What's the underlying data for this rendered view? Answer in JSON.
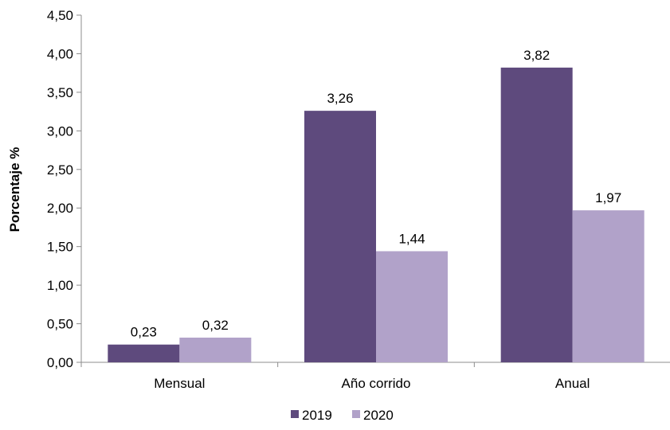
{
  "chart_data": {
    "type": "bar",
    "title": "",
    "xlabel": "",
    "ylabel": "Porcentaje %",
    "categories": [
      "Mensual",
      "Año corrido",
      "Anual"
    ],
    "series": [
      {
        "name": "2019",
        "values": [
          0.23,
          3.26,
          3.82
        ],
        "labels": [
          "0,23",
          "3,26",
          "3,82"
        ],
        "color": "#5e4a7d"
      },
      {
        "name": "2020",
        "values": [
          0.32,
          1.44,
          1.97
        ],
        "labels": [
          "0,32",
          "1,44",
          "1,97"
        ],
        "color": "#b1a2c9"
      }
    ],
    "ylim": [
      0,
      4.5
    ],
    "yticks": [
      0,
      0.5,
      1,
      1.5,
      2,
      2.5,
      3,
      3.5,
      4,
      4.5
    ],
    "ytick_labels": [
      "0,00",
      "0,50",
      "1,00",
      "1,50",
      "2,00",
      "2,50",
      "3,00",
      "3,50",
      "4,00",
      "4,50"
    ],
    "grid": false,
    "legend_position": "bottom"
  }
}
